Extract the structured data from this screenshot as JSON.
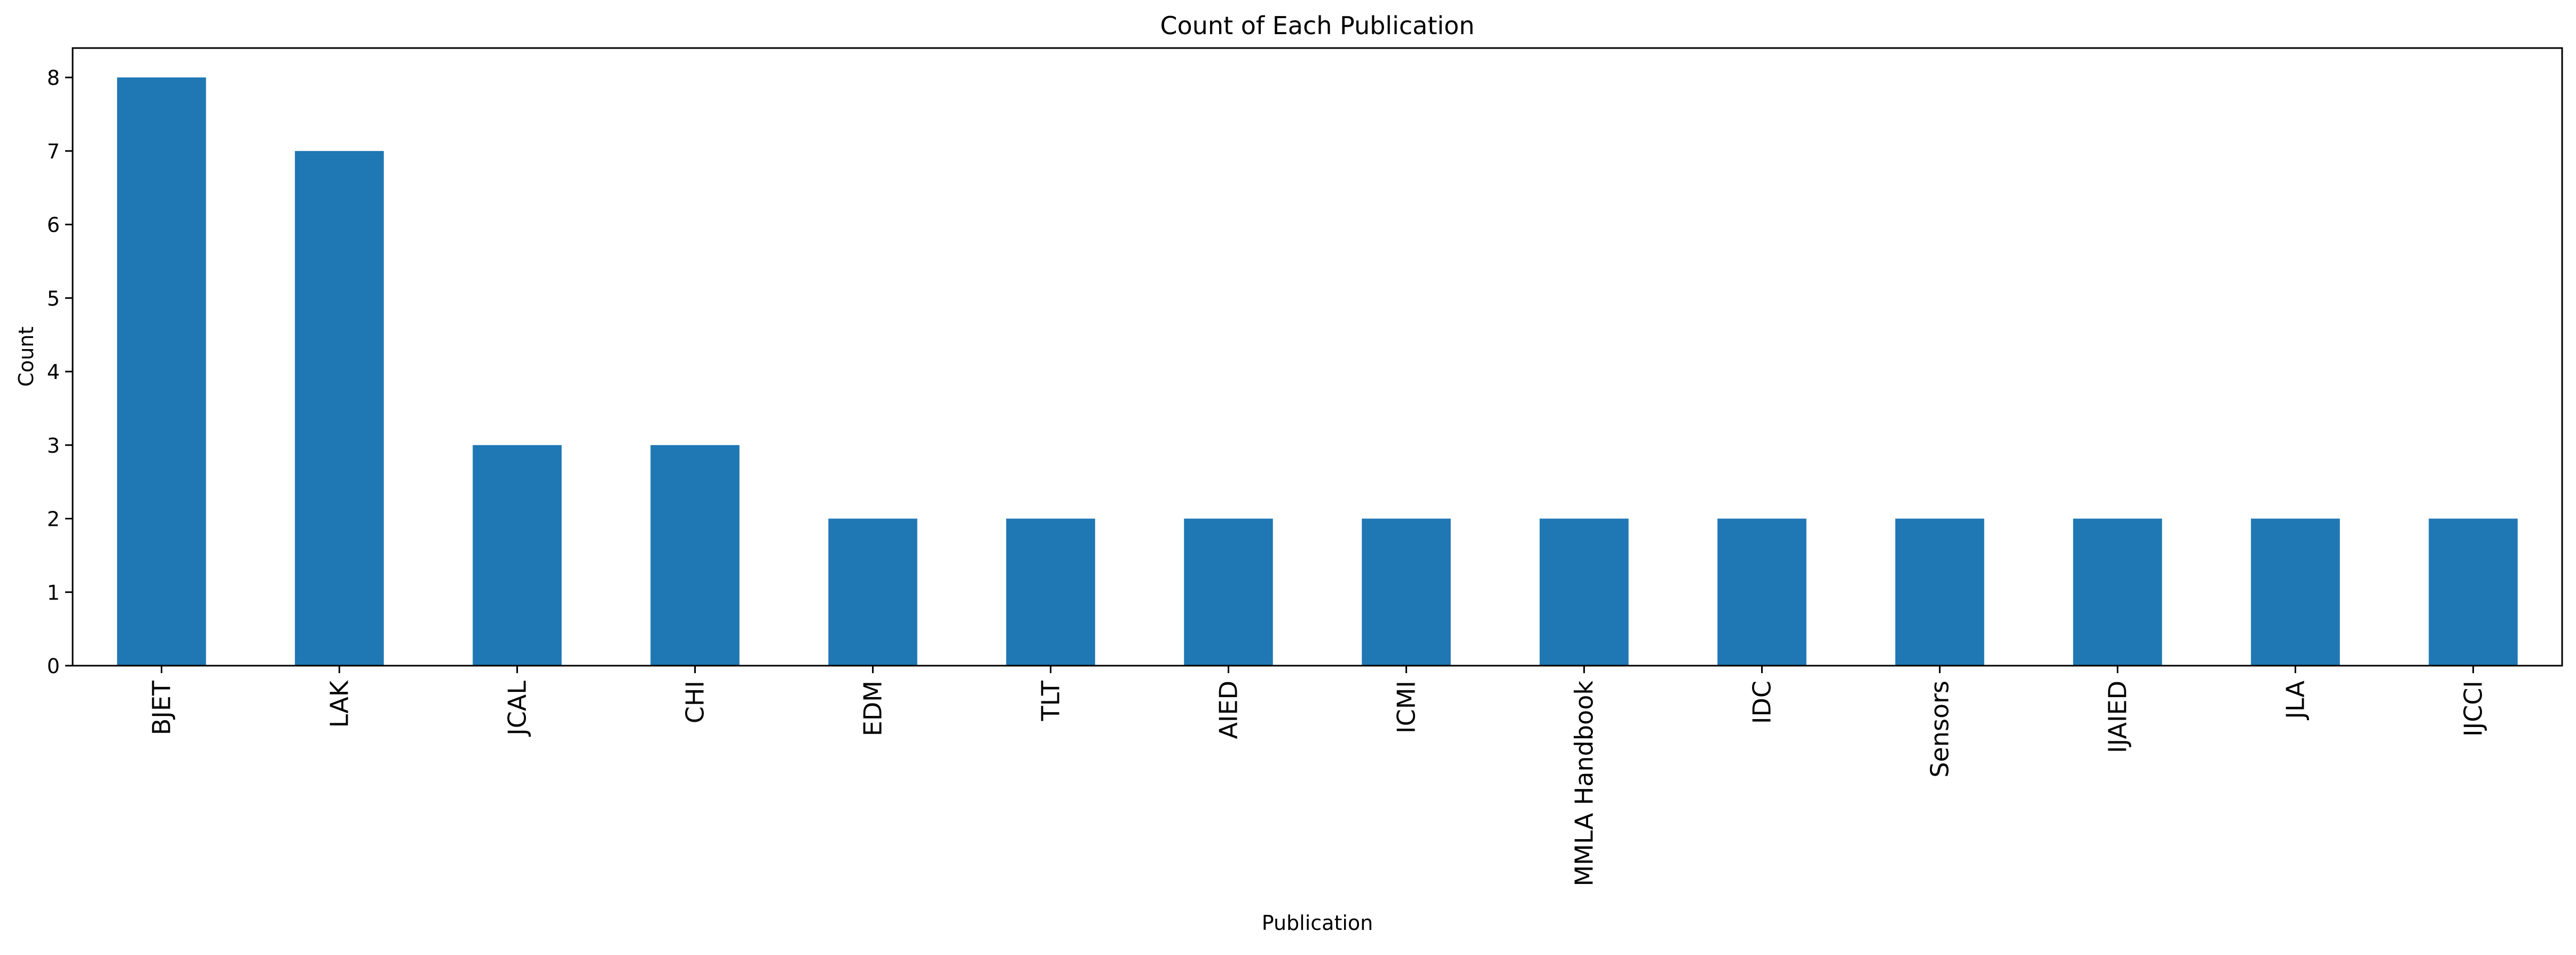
{
  "chart_data": {
    "type": "bar",
    "title": "Count of Each Publication",
    "xlabel": "Publication",
    "ylabel": "Count",
    "categories": [
      "BJET",
      "LAK",
      "JCAL",
      "CHI",
      "EDM",
      "TLT",
      "AIED",
      "ICMI",
      "MMLA Handbook",
      "IDC",
      "Sensors",
      "IJAIED",
      "JLA",
      "IJCCI"
    ],
    "values": [
      8,
      7,
      3,
      3,
      2,
      2,
      2,
      2,
      2,
      2,
      2,
      2,
      2,
      2
    ],
    "ylim": [
      0,
      8.4
    ],
    "yticks": [
      0,
      1,
      2,
      3,
      4,
      5,
      6,
      7,
      8
    ],
    "grid": false,
    "bar_color": "#1f77b4"
  }
}
